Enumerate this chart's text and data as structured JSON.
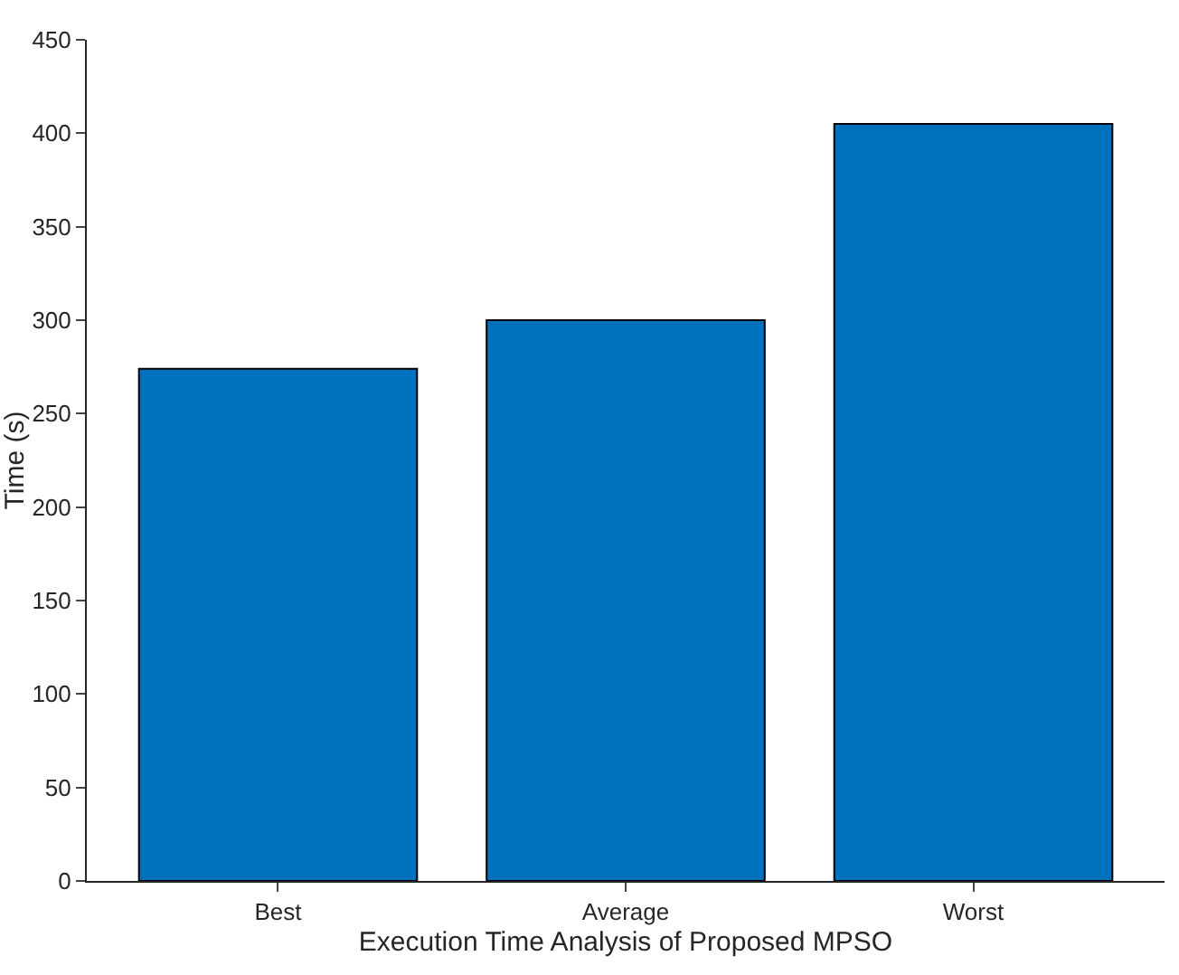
{
  "chart_data": {
    "type": "bar",
    "xlabel": "Execution Time Analysis of Proposed MPSO",
    "ylabel": "Time (s)",
    "categories": [
      "Best",
      "Average",
      "Worst"
    ],
    "values": [
      274,
      300,
      405
    ],
    "color": "#0072bd",
    "ylim": [
      0,
      450
    ],
    "yticks": [
      0,
      50,
      100,
      150,
      200,
      250,
      300,
      350,
      400,
      450
    ],
    "grid": false
  }
}
